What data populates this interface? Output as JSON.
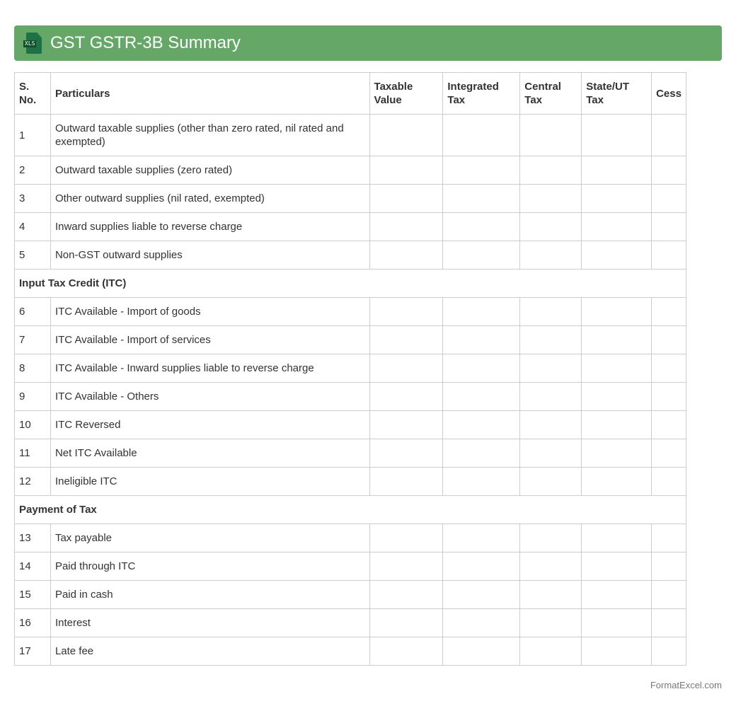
{
  "header": {
    "title": "GST GSTR-3B Summary",
    "icon": "xls-file-icon",
    "icon_label": "XLS",
    "color": "#64a766"
  },
  "table": {
    "columns": [
      "S. No.",
      "Particulars",
      "Taxable Value",
      "Integrated Tax",
      "Central Tax",
      "State/UT Tax",
      "Cess"
    ],
    "rows": [
      {
        "no": "1",
        "text": "Outward taxable supplies (other than zero rated, nil rated and exempted)"
      },
      {
        "no": "2",
        "text": "Outward taxable supplies (zero rated)"
      },
      {
        "no": "3",
        "text": "Other outward supplies (nil rated, exempted)"
      },
      {
        "no": "4",
        "text": "Inward supplies liable to reverse charge"
      },
      {
        "no": "5",
        "text": "Non-GST outward supplies"
      },
      {
        "section": "Input Tax Credit (ITC)"
      },
      {
        "no": "6",
        "text": "ITC Available - Import of goods"
      },
      {
        "no": "7",
        "text": "ITC Available - Import of services"
      },
      {
        "no": "8",
        "text": "ITC Available - Inward supplies liable to reverse charge"
      },
      {
        "no": "9",
        "text": "ITC Available - Others"
      },
      {
        "no": "10",
        "text": "ITC Reversed"
      },
      {
        "no": "11",
        "text": "Net ITC Available"
      },
      {
        "no": "12",
        "text": "Ineligible ITC"
      },
      {
        "section": "Payment of Tax"
      },
      {
        "no": "13",
        "text": "Tax payable"
      },
      {
        "no": "14",
        "text": "Paid through ITC"
      },
      {
        "no": "15",
        "text": "Paid in cash"
      },
      {
        "no": "16",
        "text": "Interest"
      },
      {
        "no": "17",
        "text": "Late fee"
      }
    ]
  },
  "footer": {
    "brand": "FormatExcel.com"
  }
}
